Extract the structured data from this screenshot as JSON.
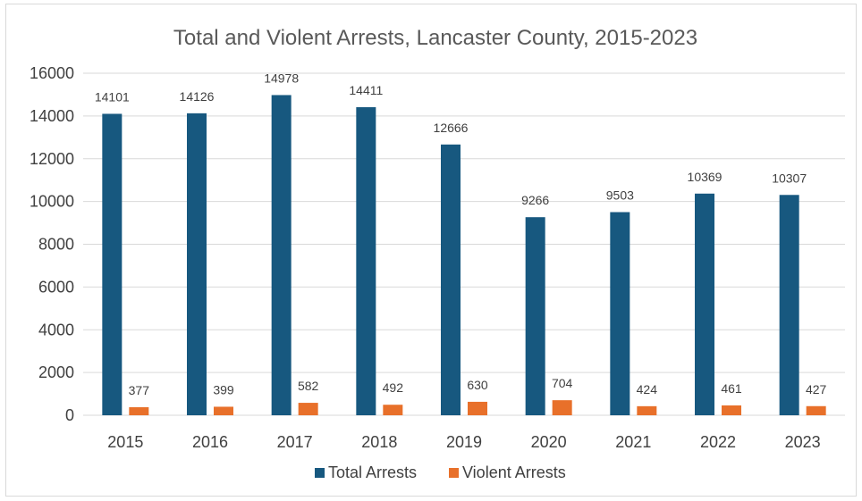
{
  "chart_data": {
    "type": "bar",
    "title": "Total and Violent Arrests, Lancaster County, 2015-2023",
    "xlabel": "",
    "ylabel": "",
    "categories": [
      "2015",
      "2016",
      "2017",
      "2018",
      "2019",
      "2020",
      "2021",
      "2022",
      "2023"
    ],
    "series": [
      {
        "name": "Total Arrests",
        "color": "#17587f",
        "values": [
          14101,
          14126,
          14978,
          14411,
          12666,
          9266,
          9503,
          10369,
          10307
        ]
      },
      {
        "name": "Violent Arrests",
        "color": "#e8702a",
        "values": [
          377,
          399,
          582,
          492,
          630,
          704,
          424,
          461,
          427
        ]
      }
    ],
    "ylim": [
      0,
      16000
    ],
    "yticks": [
      0,
      2000,
      4000,
      6000,
      8000,
      10000,
      12000,
      14000,
      16000
    ],
    "grid": true,
    "legend_position": "bottom",
    "data_labels": true
  }
}
